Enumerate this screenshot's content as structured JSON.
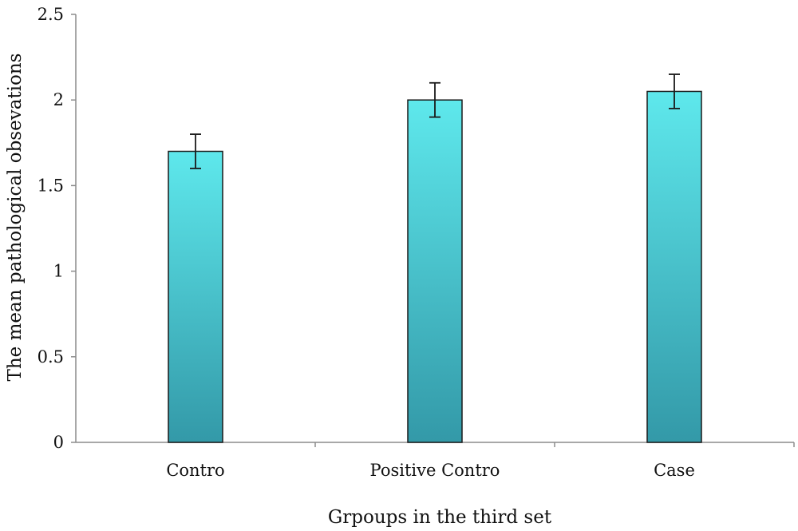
{
  "chart_data": {
    "type": "bar",
    "title": "",
    "xlabel": "Grpoups in the third set",
    "ylabel": "The mean pathological obsevations",
    "categories": [
      "Contro",
      "Positive Contro",
      "Case"
    ],
    "values": [
      1.7,
      2.0,
      2.05
    ],
    "error": [
      0.1,
      0.1,
      0.1
    ],
    "ylim": [
      0,
      2.5
    ],
    "yticks": [
      0,
      0.5,
      1,
      1.5,
      2,
      2.5
    ],
    "ytick_labels": [
      "0",
      "0.5",
      "1",
      "1.5",
      "2",
      "2.5"
    ],
    "grid": false,
    "legend": "none",
    "colors": {
      "bar_top": "#5EE8EC",
      "bar_bottom": "#3399A8",
      "axis": "#8C8C8C"
    }
  }
}
